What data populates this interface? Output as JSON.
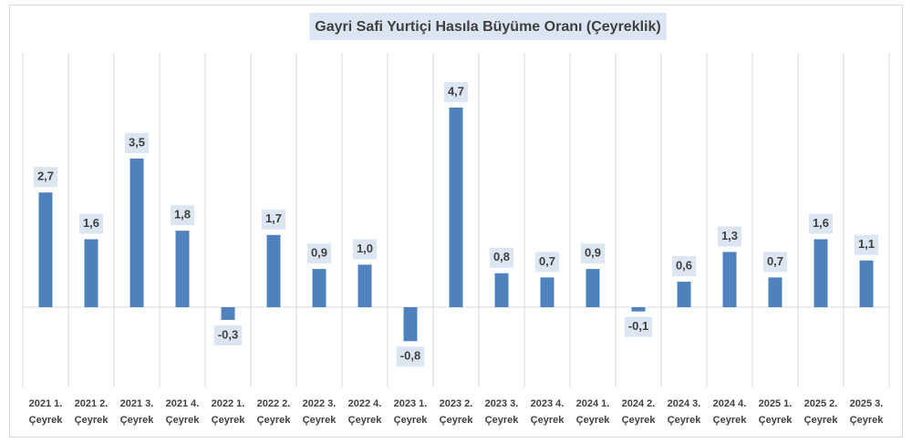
{
  "chart_data": {
    "type": "bar",
    "title": "Gayri Safi Yurtiçi Hasıla Büyüme Oranı (Çeyreklik)",
    "categories": [
      "2021 1.\nÇeyrek",
      "2021 2.\nÇeyrek",
      "2021 3.\nÇeyrek",
      "2021 4.\nÇeyrek",
      "2022 1.\nÇeyrek",
      "2022 2.\nÇeyrek",
      "2022 3.\nÇeyrek",
      "2022 4.\nÇeyrek",
      "2023 1.\nÇeyrek",
      "2023 2.\nÇeyrek",
      "2023 3.\nÇeyrek",
      "2023 4.\nÇeyrek",
      "2024 1.\nÇeyrek",
      "2024 2.\nÇeyrek",
      "2024 3.\nÇeyrek",
      "2024 4.\nÇeyrek",
      "2025 1.\nÇeyrek",
      "2025 2.\nÇeyrek",
      "2025 3.\nÇeyrek"
    ],
    "values": [
      2.7,
      1.6,
      3.5,
      1.8,
      -0.3,
      1.7,
      0.9,
      1.0,
      -0.8,
      4.7,
      0.8,
      0.7,
      0.9,
      -0.1,
      0.6,
      1.3,
      0.7,
      1.6,
      1.1
    ],
    "value_labels": [
      "2,7",
      "1,6",
      "3,5",
      "1,8",
      "-0,3",
      "1,7",
      "0,9",
      "1,0",
      "-0,8",
      "4,7",
      "0,8",
      "0,7",
      "0,9",
      "-0,1",
      "0,6",
      "1,3",
      "0,7",
      "1,6",
      "1,1"
    ],
    "color": "#4f81bd",
    "grid": true
  }
}
